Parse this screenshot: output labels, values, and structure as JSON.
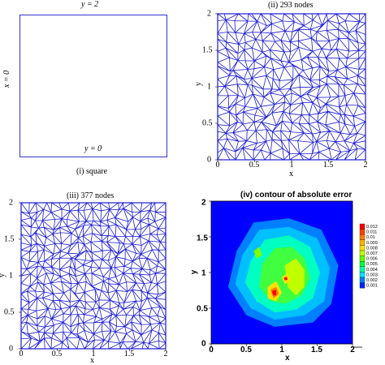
{
  "panel_i": {
    "top_label": "y = 2",
    "left_label": "x = 0",
    "bottom_label": "y = 0",
    "caption": "(i) square",
    "border_color": "#3333cc"
  },
  "panel_ii": {
    "title": "(ii) 293 nodes",
    "xlabel": "x",
    "ylabel": "y",
    "xticks": [
      "0",
      "0.5",
      "1",
      "1.5",
      "2"
    ],
    "yticks": [
      "0",
      "0.5",
      "1",
      "1.5",
      "2"
    ],
    "mesh_color": "#1a1ad6",
    "nodes": 293
  },
  "panel_iii": {
    "title": "(iii) 377 nodes",
    "xlabel": "x",
    "ylabel": "y",
    "xticks": [
      "0",
      "0.5",
      "1",
      "1.5",
      "2"
    ],
    "yticks": [
      "0",
      "0.5",
      "1",
      "1.5",
      "2"
    ],
    "mesh_color": "#1a1ad6",
    "nodes": 377
  },
  "panel_iv": {
    "title": "(iv) contour of absolute error",
    "xlabel": "x",
    "ylabel": "y",
    "xticks": [
      "0",
      "0.5",
      "1",
      "1.5",
      "2"
    ],
    "yticks": [
      "0",
      "0.5",
      "1",
      "1.5",
      "2"
    ],
    "legend_values": [
      "0.012",
      "0.011",
      "0.01",
      "0.009",
      "0.008",
      "0.007",
      "0.006",
      "0.005",
      "0.004",
      "0.003",
      "0.002",
      "0.001"
    ],
    "legend_colors": [
      "#ff0000",
      "#ff4000",
      "#ff8000",
      "#ffb000",
      "#ffe000",
      "#c0ff00",
      "#60ff00",
      "#00ff40",
      "#00ffa0",
      "#00e0ff",
      "#0080ff",
      "#0020ff"
    ],
    "background_color": "#0000ff"
  }
}
